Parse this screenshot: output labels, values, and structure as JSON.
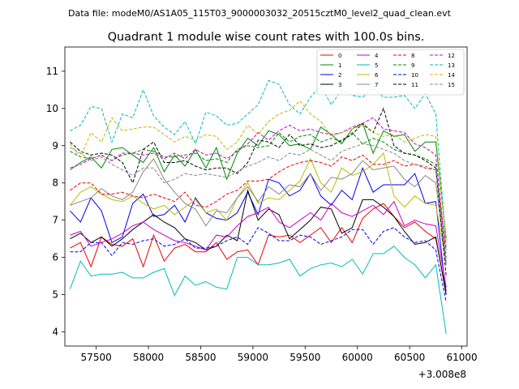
{
  "chart_data": {
    "type": "line",
    "supertitle": "Data file: modeM0/AS1A05_115T03_9000003032_20515cztM0_level2_quad_clean.evt",
    "title": "Quadrant 1 module wise count rates with 100.0s bins.",
    "xlabel": "",
    "ylabel": "",
    "x_offset_label": "+3.008e8",
    "xlim": [
      57200,
      61050
    ],
    "ylim": [
      3.62,
      11.65
    ],
    "xticks": [
      57500,
      58000,
      58500,
      59000,
      59500,
      60000,
      60500,
      61000
    ],
    "yticks": [
      4,
      5,
      6,
      7,
      8,
      9,
      10,
      11
    ],
    "legend_position": "top-right",
    "x": [
      57250,
      57350,
      57450,
      57550,
      57650,
      57750,
      57850,
      57950,
      58050,
      58150,
      58250,
      58350,
      58450,
      58550,
      58650,
      58750,
      58850,
      58950,
      59050,
      59150,
      59250,
      59350,
      59450,
      59550,
      59650,
      59750,
      59850,
      59950,
      60050,
      60150,
      60250,
      60350,
      60450,
      60550,
      60650,
      60750,
      60850
    ],
    "series": [
      {
        "name": "0",
        "color": "#ee0000",
        "dash": false,
        "values": [
          6.25,
          6.4,
          5.75,
          6.55,
          6.35,
          6.3,
          6.5,
          5.75,
          6.6,
          5.9,
          6.25,
          6.35,
          6.15,
          6.15,
          6.4,
          5.95,
          6.15,
          6.2,
          5.8,
          6.6,
          6.55,
          6.6,
          6.4,
          6.6,
          6.8,
          6.4,
          6.8,
          6.4,
          7.05,
          7.3,
          7.45,
          7.1,
          6.8,
          6.95,
          6.7,
          6.5,
          5.1
        ]
      },
      {
        "name": "1",
        "color": "#008800",
        "dash": false,
        "values": [
          8.35,
          8.55,
          8.7,
          8.4,
          8.9,
          8.95,
          8.75,
          8.55,
          8.95,
          8.3,
          8.75,
          8.45,
          8.9,
          8.4,
          8.95,
          8.1,
          8.8,
          9.2,
          9.0,
          9.4,
          9.3,
          9.0,
          9.05,
          8.9,
          9.5,
          9.3,
          9.05,
          9.45,
          9.6,
          8.8,
          9.4,
          9.25,
          9.3,
          8.85,
          9.1,
          9.1,
          6.5
        ]
      },
      {
        "name": "2",
        "color": "#0000ee",
        "dash": false,
        "values": [
          7.25,
          6.95,
          7.6,
          7.25,
          6.4,
          6.55,
          7.45,
          7.7,
          7.1,
          7.15,
          7.4,
          6.95,
          7.6,
          7.2,
          7.05,
          7.0,
          7.2,
          7.75,
          7.15,
          8.1,
          8.0,
          7.65,
          7.8,
          8.25,
          7.65,
          7.4,
          7.8,
          7.55,
          8.4,
          7.75,
          7.95,
          7.95,
          7.95,
          8.25,
          7.45,
          7.5,
          5.0
        ]
      },
      {
        "name": "3",
        "color": "#000000",
        "dash": false,
        "values": [
          6.5,
          6.65,
          6.4,
          6.55,
          6.3,
          6.5,
          6.75,
          6.95,
          7.15,
          6.95,
          6.8,
          6.5,
          6.4,
          6.2,
          6.3,
          6.6,
          6.45,
          7.8,
          7.0,
          7.3,
          7.15,
          6.5,
          6.75,
          7.0,
          7.35,
          7.3,
          6.65,
          6.8,
          7.55,
          7.55,
          7.35,
          7.1,
          6.7,
          6.35,
          6.4,
          6.55,
          5.0
        ]
      },
      {
        "name": "4",
        "color": "#cc00cc",
        "dash": false,
        "values": [
          6.6,
          6.7,
          6.3,
          6.4,
          6.5,
          6.65,
          6.85,
          6.95,
          6.75,
          6.6,
          6.45,
          6.4,
          6.3,
          6.2,
          6.6,
          6.55,
          6.85,
          7.1,
          7.2,
          7.35,
          6.95,
          6.8,
          7.0,
          7.2,
          7.0,
          7.45,
          7.2,
          7.1,
          7.25,
          7.4,
          7.15,
          7.5,
          6.85,
          7.0,
          6.9,
          6.85,
          5.2
        ]
      },
      {
        "name": "5",
        "color": "#00bbbb",
        "dash": false,
        "values": [
          5.15,
          5.9,
          5.5,
          5.55,
          5.55,
          5.6,
          5.45,
          5.45,
          5.6,
          5.7,
          4.98,
          5.5,
          5.25,
          5.35,
          5.2,
          5.15,
          6.0,
          6.0,
          5.8,
          5.8,
          5.85,
          5.95,
          5.5,
          5.7,
          5.8,
          5.85,
          5.75,
          5.95,
          5.55,
          6.1,
          6.1,
          6.3,
          6.0,
          5.8,
          5.45,
          5.8,
          3.95
        ]
      },
      {
        "name": "6",
        "color": "#bbbb00",
        "dash": false,
        "values": [
          7.4,
          7.75,
          7.9,
          7.7,
          7.55,
          7.5,
          7.65,
          7.45,
          7.3,
          7.4,
          7.15,
          7.35,
          7.55,
          7.2,
          7.3,
          7.0,
          7.6,
          8.0,
          7.45,
          7.6,
          7.55,
          7.8,
          8.05,
          8.65,
          8.0,
          7.75,
          8.4,
          8.2,
          8.3,
          8.5,
          8.8,
          7.65,
          7.35,
          7.65,
          7.45,
          7.4,
          5.9
        ]
      },
      {
        "name": "7",
        "color": "#888888",
        "dash": false,
        "values": [
          7.4,
          7.5,
          7.6,
          7.85,
          7.65,
          7.55,
          7.75,
          8.3,
          8.65,
          8.1,
          7.75,
          7.45,
          7.3,
          6.85,
          7.25,
          7.2,
          7.6,
          7.9,
          7.5,
          7.9,
          7.7,
          7.95,
          7.9,
          8.25,
          7.8,
          8.15,
          8.1,
          8.25,
          8.6,
          8.35,
          8.4,
          8.45,
          8.1,
          7.9,
          8.2,
          8.0,
          5.8
        ]
      },
      {
        "name": "8",
        "color": "#ee0000",
        "dash": true,
        "values": [
          7.8,
          8.0,
          8.0,
          7.7,
          7.7,
          7.75,
          7.65,
          7.6,
          7.7,
          7.6,
          7.5,
          7.75,
          7.4,
          7.35,
          7.5,
          7.7,
          7.8,
          8.05,
          8.05,
          8.1,
          8.3,
          8.45,
          8.55,
          8.6,
          8.55,
          8.45,
          8.7,
          8.6,
          8.75,
          8.5,
          8.5,
          8.6,
          8.45,
          8.5,
          8.4,
          8.35,
          6.2
        ]
      },
      {
        "name": "9",
        "color": "#008800",
        "dash": true,
        "values": [
          8.85,
          8.7,
          8.65,
          8.75,
          8.6,
          8.75,
          8.8,
          8.9,
          8.85,
          8.7,
          8.7,
          8.75,
          8.8,
          8.6,
          8.65,
          8.55,
          8.9,
          9.0,
          8.95,
          9.0,
          9.35,
          9.1,
          9.25,
          9.3,
          9.1,
          9.2,
          9.1,
          9.35,
          9.05,
          9.2,
          9.1,
          8.9,
          8.8,
          8.75,
          8.65,
          8.5,
          5.8
        ]
      },
      {
        "name": "10",
        "color": "#0000ee",
        "dash": true,
        "values": [
          6.15,
          6.15,
          6.4,
          6.4,
          6.05,
          6.4,
          6.35,
          6.45,
          6.5,
          6.3,
          6.35,
          6.5,
          6.25,
          6.25,
          6.3,
          6.45,
          6.55,
          6.35,
          6.8,
          6.65,
          6.45,
          6.45,
          6.6,
          6.55,
          6.35,
          6.45,
          6.55,
          6.75,
          6.75,
          6.35,
          6.7,
          6.8,
          6.55,
          6.4,
          6.45,
          6.2,
          4.8
        ]
      },
      {
        "name": "11",
        "color": "#000000",
        "dash": true,
        "values": [
          9.1,
          8.85,
          8.75,
          8.8,
          8.75,
          8.55,
          8.0,
          8.9,
          9.1,
          8.55,
          8.55,
          8.6,
          8.45,
          8.35,
          8.4,
          8.4,
          8.25,
          8.55,
          9.15,
          9.1,
          8.95,
          9.3,
          9.0,
          9.05,
          8.95,
          9.0,
          9.15,
          9.3,
          9.6,
          9.35,
          10.0,
          9.0,
          8.8,
          8.75,
          8.6,
          8.4,
          5.5
        ]
      },
      {
        "name": "12",
        "color": "#cc00cc",
        "dash": true,
        "values": [
          8.4,
          8.5,
          8.65,
          8.75,
          8.6,
          8.8,
          8.8,
          8.75,
          8.8,
          8.65,
          8.8,
          8.65,
          8.9,
          8.75,
          8.8,
          8.65,
          8.85,
          9.05,
          9.35,
          9.15,
          9.4,
          9.55,
          9.4,
          9.45,
          9.35,
          9.3,
          9.35,
          9.5,
          9.6,
          9.75,
          9.45,
          9.4,
          9.35,
          9.05,
          8.95,
          8.75,
          6.0
        ]
      },
      {
        "name": "13",
        "color": "#00bbbb",
        "dash": true,
        "values": [
          9.4,
          9.55,
          10.05,
          10.0,
          9.1,
          9.85,
          9.75,
          10.5,
          9.8,
          9.5,
          9.3,
          9.65,
          9.05,
          9.9,
          9.8,
          9.55,
          9.6,
          9.85,
          10.1,
          10.75,
          10.65,
          10.1,
          9.85,
          10.3,
          10.6,
          10.1,
          10.5,
          10.35,
          10.3,
          10.55,
          10.3,
          10.3,
          10.35,
          10.0,
          10.4,
          9.85,
          6.3
        ]
      },
      {
        "name": "14",
        "color": "#bbbb00",
        "dash": true,
        "values": [
          9.05,
          8.7,
          9.35,
          9.1,
          9.75,
          9.4,
          9.45,
          9.5,
          9.5,
          9.3,
          9.1,
          9.25,
          9.15,
          9.3,
          9.25,
          8.9,
          9.1,
          9.55,
          9.3,
          9.65,
          9.85,
          9.95,
          10.2,
          9.85,
          9.65,
          9.25,
          9.35,
          9.45,
          9.55,
          9.35,
          9.25,
          9.3,
          9.1,
          9.2,
          9.3,
          9.25,
          6.4
        ]
      },
      {
        "name": "15",
        "color": "#888888",
        "dash": true,
        "values": [
          8.95,
          8.8,
          8.6,
          8.7,
          8.5,
          8.35,
          8.2,
          8.4,
          8.4,
          8.0,
          8.1,
          8.25,
          8.2,
          8.25,
          8.2,
          8.15,
          8.3,
          8.45,
          8.55,
          8.7,
          8.6,
          8.8,
          8.75,
          8.9,
          8.75,
          8.6,
          8.85,
          8.95,
          9.05,
          9.0,
          8.9,
          8.8,
          8.6,
          8.5,
          8.45,
          8.35,
          5.9
        ]
      }
    ]
  }
}
